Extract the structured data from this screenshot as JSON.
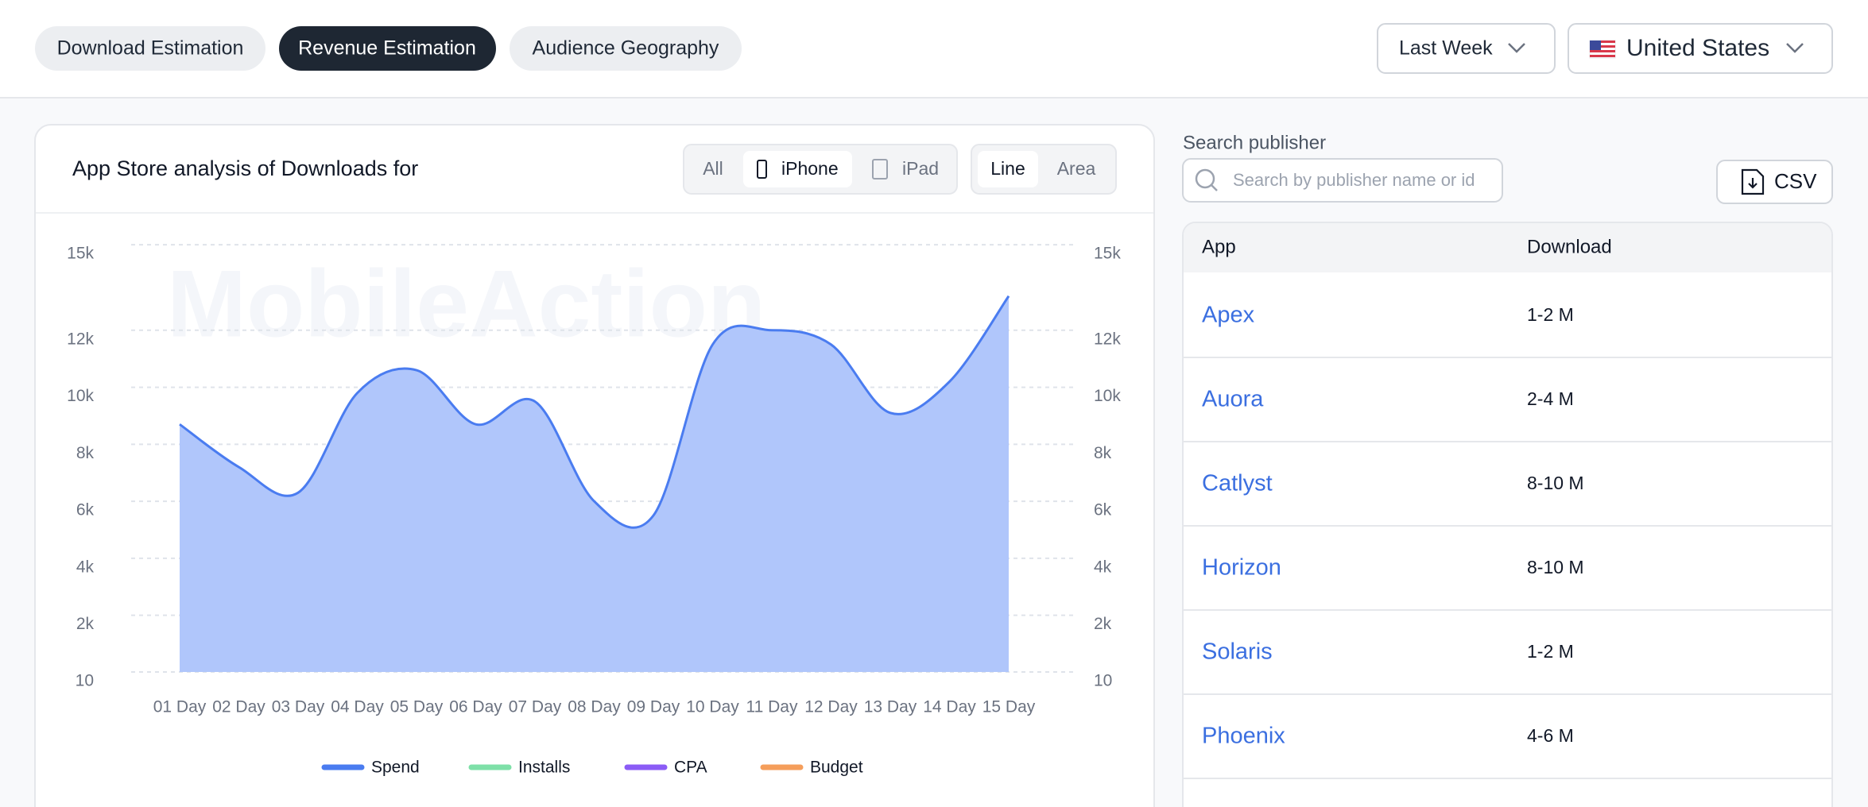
{
  "tabs": [
    "Download Estimation",
    "Revenue Estimation",
    "Audience Geography"
  ],
  "period": "Last Week",
  "country": "United States",
  "panel": {
    "title": "App Store analysis of Downloads for",
    "device_options": [
      "All",
      "iPhone",
      "iPad"
    ],
    "chart_options": [
      "Line",
      "Area"
    ],
    "watermark": "MobileAction"
  },
  "chart_data": {
    "type": "area",
    "categories": [
      "01 Day",
      "02 Day",
      "03 Day",
      "04 Day",
      "05 Day",
      "06 Day",
      "07  Day",
      "08 Day",
      "09 Day",
      "10 Day",
      "11 Day",
      "12 Day",
      "13 Day",
      "14 Day",
      "15 Day"
    ],
    "series": [
      {
        "name": "Spend",
        "color": "#4a7cf0",
        "values": [
          8700,
          7200,
          6300,
          9800,
          10600,
          8700,
          9500,
          6000,
          5500,
          11500,
          12000,
          11500,
          9100,
          10200,
          13200
        ]
      },
      {
        "name": "Installs",
        "color": "#7ee0a8",
        "values": [
          null,
          null,
          null,
          null,
          null,
          null,
          null,
          null,
          null,
          null,
          null,
          null,
          null,
          null,
          null
        ]
      },
      {
        "name": "CPA",
        "color": "#8b5cf6",
        "values": [
          null,
          null,
          null,
          null,
          null,
          null,
          null,
          null,
          null,
          null,
          null,
          null,
          null,
          null,
          null
        ]
      },
      {
        "name": "Budget",
        "color": "#f59e5b",
        "values": [
          null,
          null,
          null,
          null,
          null,
          null,
          null,
          null,
          null,
          null,
          null,
          null,
          null,
          null,
          null
        ]
      }
    ],
    "area_color": "#b0c6fb",
    "ylim": [
      10,
      15000
    ],
    "yticks": [
      10,
      {
        "value": 2000,
        "label": "2k"
      },
      {
        "value": 4000,
        "label": "4k"
      },
      {
        "value": 6000,
        "label": "6k"
      },
      {
        "value": 8000,
        "label": "8k"
      },
      {
        "value": 10000,
        "label": "10k"
      },
      {
        "value": 12000,
        "label": "12k"
      },
      {
        "value": 15000,
        "label": "15k"
      }
    ],
    "grid": true,
    "right_axis_mirror": true,
    "legend": "bottom"
  },
  "publisher": {
    "search_label": "Search publisher",
    "search_placeholder": "Search by publisher name or id",
    "export": "CSV",
    "columns": [
      "App",
      "Download"
    ],
    "rows": [
      [
        "Apex",
        "1-2 M"
      ],
      [
        "Auora",
        "2-4 M"
      ],
      [
        "Catlyst",
        "8-10 M"
      ],
      [
        "Horizon",
        "8-10 M"
      ],
      [
        "Solaris",
        "1-2 M"
      ],
      [
        "Phoenix",
        "4-6 M"
      ]
    ]
  }
}
